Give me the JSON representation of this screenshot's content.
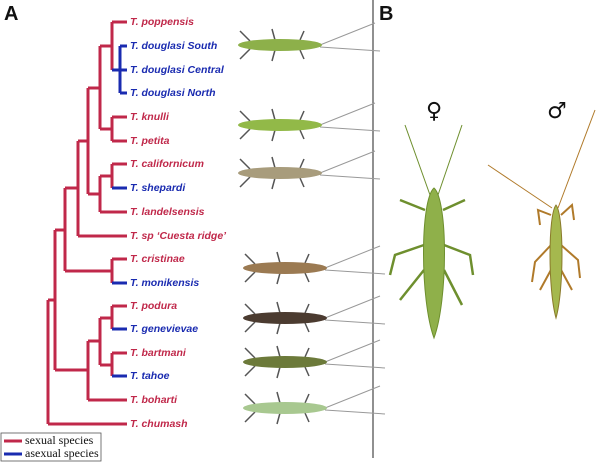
{
  "panel_a": {
    "label": "A",
    "taxa": [
      "T. poppensis",
      "T. douglasi South",
      "T. douglasi Central",
      "T. douglasi North",
      "T. knulli",
      "T. petita",
      "T. californicum",
      "T. shepardi",
      "T. landelsensis",
      "T. sp ‘Cuesta ridge’",
      "T. cristinae",
      "T. monikensis",
      "T. podura",
      "T. genevievae",
      "T. bartmani",
      "T. tahoe",
      "T. boharti",
      "T. chumash"
    ],
    "legend": [
      "sexual species",
      "asexual species"
    ]
  },
  "panel_b": {
    "label": "B",
    "female": "♀",
    "male": "♂"
  }
}
